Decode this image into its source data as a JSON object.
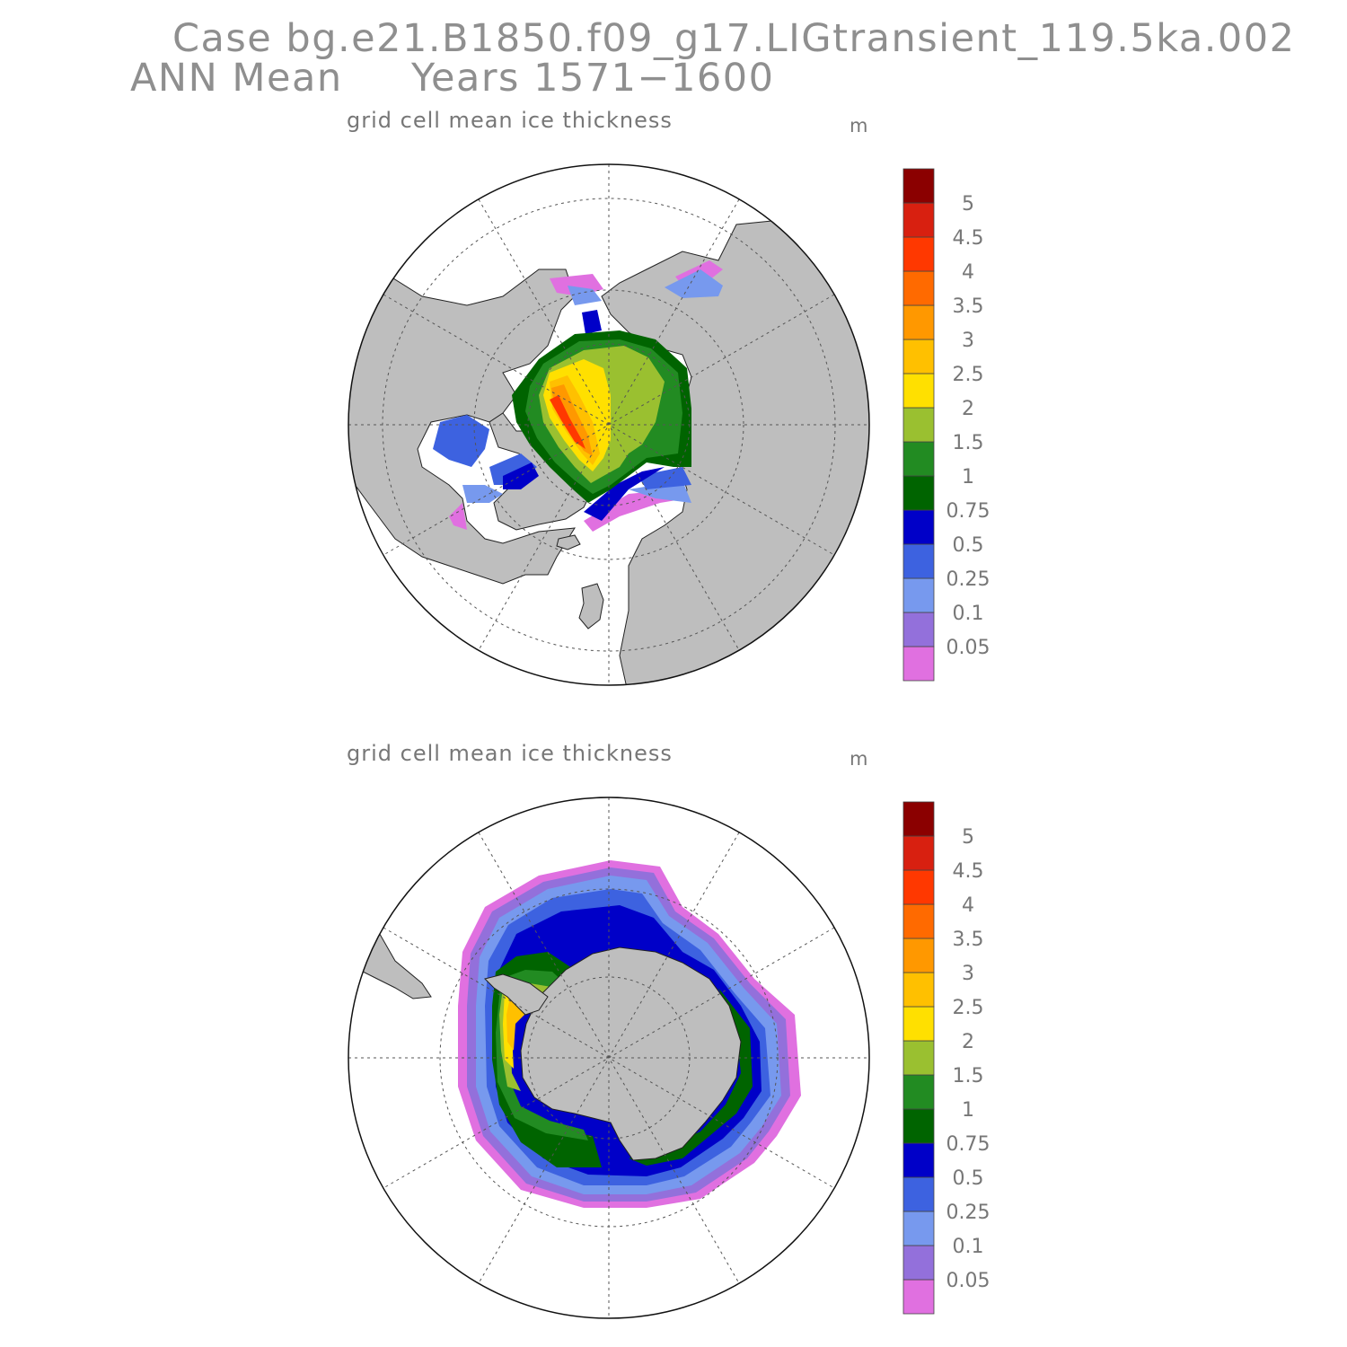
{
  "header": {
    "case_line": "Case bg.e21.B1850.f09_g17.LIGtransient_119.5ka.002",
    "period_label": "ANN Mean",
    "years_label": "Years 1571−1600"
  },
  "panels": [
    {
      "id": "north",
      "title": "grid cell mean ice thickness",
      "units": "m",
      "hemisphere": "Northern Hemisphere polar stereographic"
    },
    {
      "id": "south",
      "title": "grid cell mean ice thickness",
      "units": "m",
      "hemisphere": "Southern Hemisphere polar stereographic"
    }
  ],
  "colorbar": {
    "levels": [
      "0.05",
      "0.1",
      "0.25",
      "0.5",
      "0.75",
      "1",
      "1.5",
      "2",
      "2.5",
      "3",
      "3.5",
      "4",
      "4.5",
      "5"
    ],
    "colors": [
      "#e070e0",
      "#9370db",
      "#7799ee",
      "#3d62e0",
      "#0000c8",
      "#006400",
      "#228b22",
      "#9ac030",
      "#ffe000",
      "#ffc000",
      "#ff9800",
      "#ff6a00",
      "#ff3800",
      "#d82010",
      "#8b0000"
    ]
  },
  "map_colors": {
    "land": "#bebebe",
    "ocean": "#ffffff",
    "grid": "#555555"
  },
  "chart_data": [
    {
      "type": "heatmap",
      "title": "grid cell mean ice thickness",
      "units": "m",
      "region": "Arctic",
      "color_levels": [
        0.05,
        0.1,
        0.25,
        0.5,
        0.75,
        1,
        1.5,
        2,
        2.5,
        3,
        3.5,
        4,
        4.5,
        5
      ],
      "observed": {
        "max_thickness_m": "about 4 to 4.5 (north of Greenland / Canadian Archipelago)",
        "central_arctic_m": "1.5 to 2.5",
        "marginal_seas_m": "0.05 to 1"
      }
    },
    {
      "type": "heatmap",
      "title": "grid cell mean ice thickness",
      "units": "m",
      "region": "Antarctic",
      "color_levels": [
        0.05,
        0.1,
        0.25,
        0.5,
        0.75,
        1,
        1.5,
        2,
        2.5,
        3,
        3.5,
        4,
        4.5,
        5
      ],
      "observed": {
        "max_thickness_m": "about 2 to 3 (western Weddell Sea)",
        "ring_m": "0.05 to 1.5"
      }
    }
  ]
}
